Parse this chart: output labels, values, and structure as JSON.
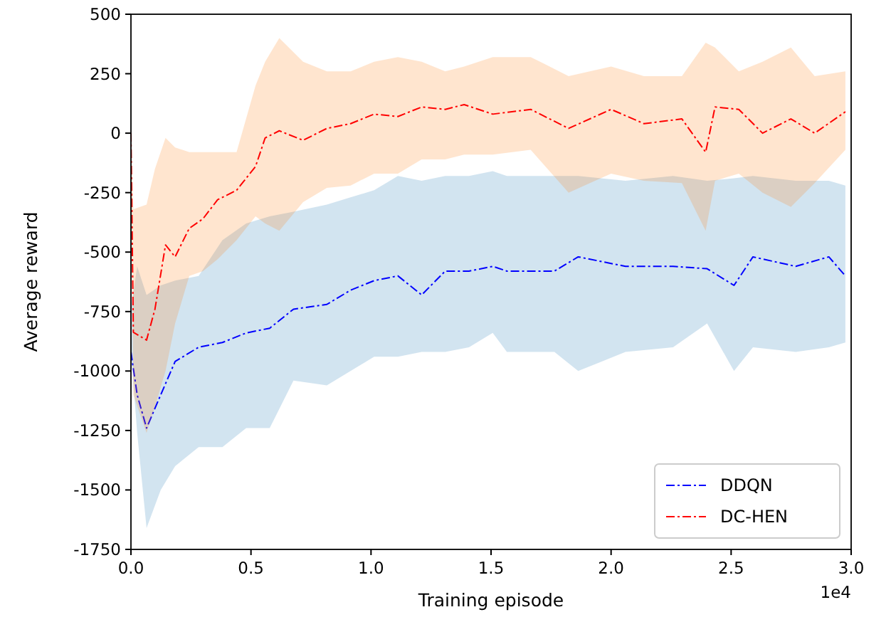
{
  "chart_data": {
    "type": "line",
    "xlabel": "Training episode",
    "ylabel": "Average reward",
    "annotations": [
      "1e4"
    ],
    "xlim": [
      0,
      3
    ],
    "ylim": [
      -1750,
      500
    ],
    "xticks": [
      {
        "value": 0,
        "label": "0.0"
      },
      0.5,
      {
        "value": 1,
        "label": "1.0"
      },
      1.5,
      {
        "value": 2,
        "label": "2.0"
      },
      2.5,
      {
        "value": 3,
        "label": "3.0"
      }
    ],
    "yticks": [
      -1750,
      -1500,
      -1250,
      -1000,
      -750,
      -500,
      -250,
      0,
      250,
      500
    ],
    "grid": false,
    "legend": "bottom right",
    "line_style": "dashed",
    "series": [
      {
        "name": "DDQN",
        "color": "#0000ff",
        "x": [
          0,
          0.026,
          0.065,
          0.124,
          0.184,
          0.282,
          0.381,
          0.48,
          0.578,
          0.677,
          0.816,
          0.915,
          1.013,
          1.112,
          1.211,
          1.309,
          1.408,
          1.507,
          1.566,
          1.764,
          1.863,
          2.06,
          2.258,
          2.4,
          2.512,
          2.591,
          2.769,
          2.907,
          2.976
        ],
        "values": [
          -920,
          -1100,
          -1240,
          -1100,
          -960,
          -900,
          -880,
          -840,
          -820,
          -740,
          -720,
          -660,
          -620,
          -600,
          -680,
          -580,
          -580,
          -560,
          -580,
          -580,
          -520,
          -560,
          -560,
          -570,
          -640,
          -520,
          -560,
          -520,
          -600
        ],
        "upper": [
          -740,
          -560,
          -680,
          -640,
          -620,
          -600,
          -450,
          -380,
          -350,
          -330,
          -300,
          -270,
          -240,
          -180,
          -200,
          -180,
          -180,
          -160,
          -180,
          -180,
          -180,
          -200,
          -180,
          -200,
          -190,
          -180,
          -200,
          -200,
          -220
        ],
        "lower": [
          -920,
          -1260,
          -1660,
          -1500,
          -1400,
          -1320,
          -1320,
          -1240,
          -1240,
          -1040,
          -1060,
          -1000,
          -940,
          -940,
          -920,
          -920,
          -900,
          -840,
          -920,
          -920,
          -1000,
          -920,
          -900,
          -800,
          -1000,
          -900,
          -920,
          -900,
          -880
        ]
      },
      {
        "name": "DC-HEN",
        "color": "#ff0000",
        "x": [
          0,
          0.01,
          0.065,
          0.1,
          0.144,
          0.184,
          0.243,
          0.3,
          0.361,
          0.44,
          0.519,
          0.559,
          0.618,
          0.717,
          0.816,
          0.915,
          1.013,
          1.112,
          1.211,
          1.309,
          1.388,
          1.507,
          1.665,
          1.823,
          2,
          2.137,
          2.295,
          2.394,
          2.433,
          2.532,
          2.631,
          2.749,
          2.848,
          2.976
        ],
        "values": [
          0,
          -837,
          -870,
          -740,
          -470,
          -520,
          -400,
          -360,
          -280,
          -240,
          -140,
          -20,
          10,
          -30,
          20,
          40,
          80,
          70,
          110,
          100,
          120,
          80,
          100,
          20,
          100,
          40,
          60,
          -80,
          110,
          100,
          0,
          60,
          0,
          90
        ],
        "upper": [
          50,
          -320,
          -300,
          -150,
          -20,
          -60,
          -80,
          -80,
          -80,
          -80,
          200,
          300,
          400,
          300,
          260,
          260,
          300,
          320,
          300,
          260,
          280,
          320,
          320,
          240,
          280,
          240,
          240,
          380,
          360,
          260,
          300,
          360,
          240,
          260
        ],
        "lower": [
          -100,
          -1100,
          -1260,
          -1150,
          -1000,
          -800,
          -600,
          -580,
          -530,
          -450,
          -350,
          -380,
          -410,
          -290,
          -230,
          -220,
          -170,
          -170,
          -110,
          -110,
          -90,
          -90,
          -70,
          -250,
          -170,
          -200,
          -210,
          -410,
          -200,
          -170,
          -250,
          -310,
          -210,
          -70
        ]
      }
    ]
  }
}
